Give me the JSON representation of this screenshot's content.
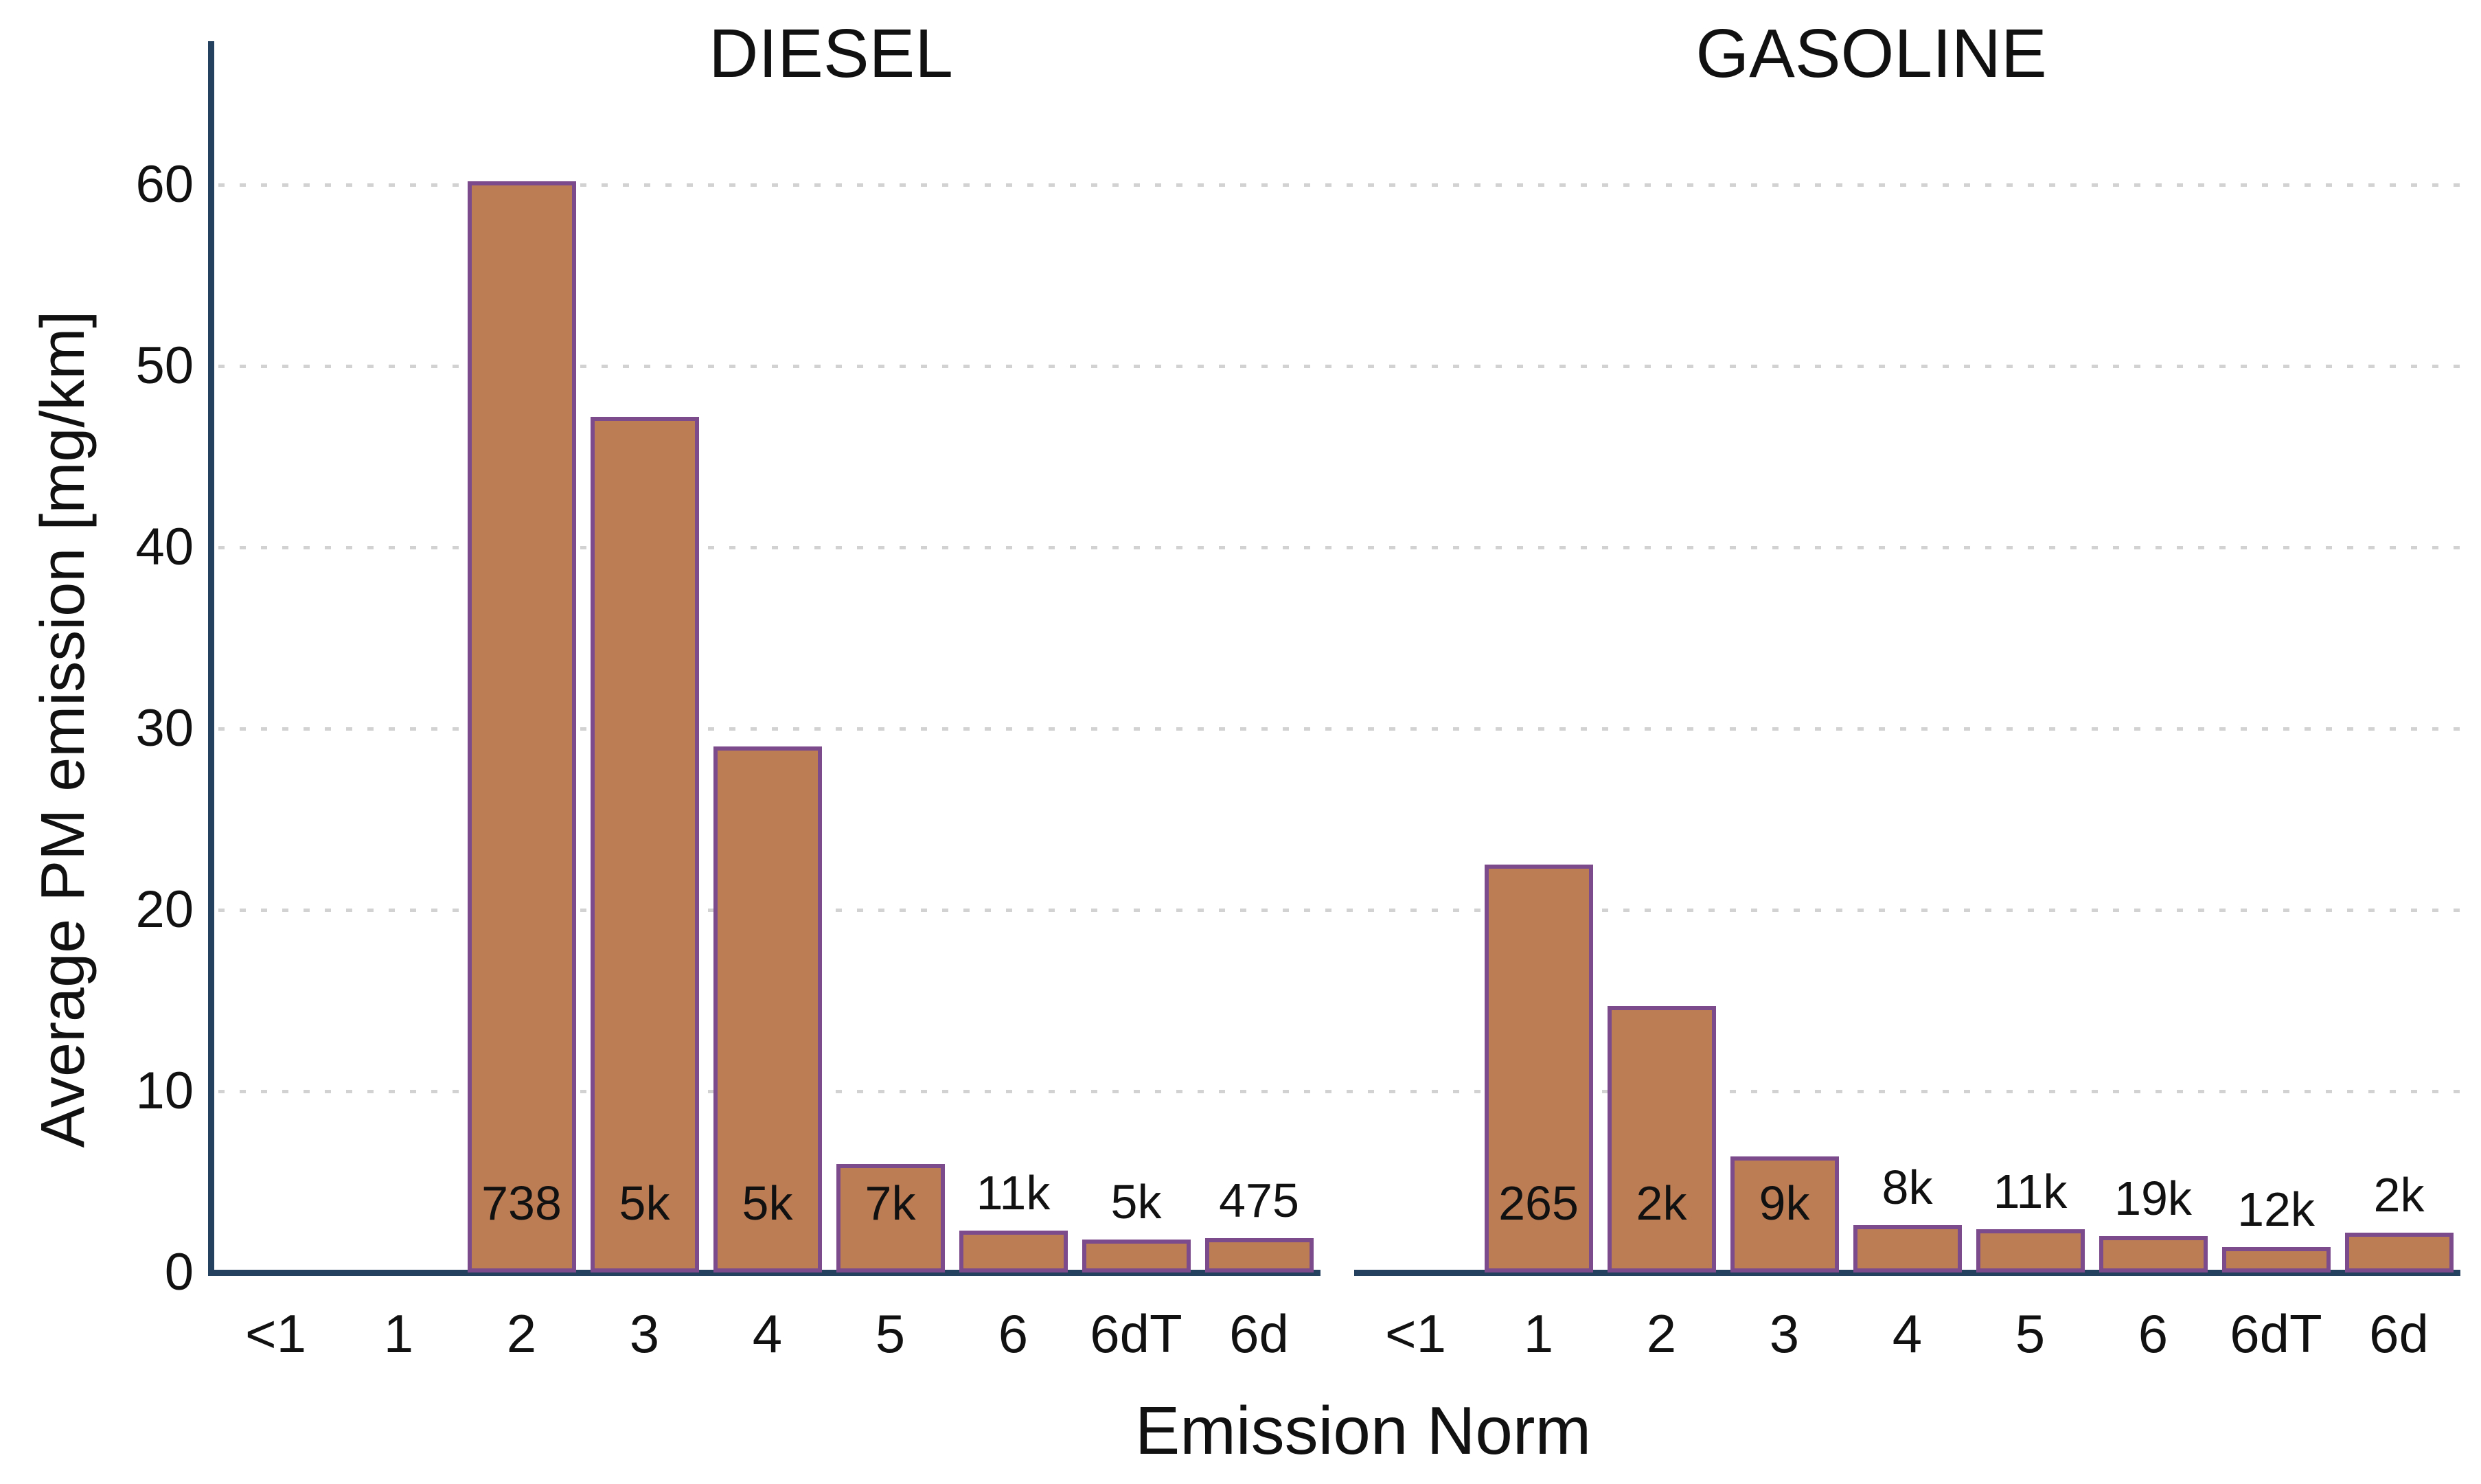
{
  "chart_data": {
    "type": "bar",
    "layout": "two side-by-side panels sharing one y-axis",
    "title": "",
    "xlabel": "Emission Norm",
    "ylabel": "Average PM emission [mg/km]",
    "ylim": [
      0,
      67
    ],
    "yticks": [
      0,
      10,
      20,
      30,
      40,
      50,
      60
    ],
    "grid": "dotted light-gray horizontal lines at each y tick",
    "categories": [
      "<1",
      "1",
      "2",
      "3",
      "4",
      "5",
      "6",
      "6dT",
      "6d"
    ],
    "panels": [
      {
        "title": "DIESEL",
        "values": [
          null,
          null,
          60.2,
          47.2,
          29.0,
          6.0,
          2.3,
          1.8,
          1.9
        ],
        "bar_count_labels": [
          null,
          null,
          "738",
          "5k",
          "5k",
          "7k",
          "11k",
          "5k",
          "475"
        ]
      },
      {
        "title": "GASOLINE",
        "values": [
          null,
          22.5,
          14.7,
          6.4,
          2.6,
          2.4,
          2.0,
          1.4,
          2.2
        ],
        "bar_count_labels": [
          null,
          "265",
          "2k",
          "9k",
          "8k",
          "11k",
          "19k",
          "12k",
          "2k"
        ]
      }
    ],
    "colors": {
      "bar_fill": "#bc7c54",
      "bar_border": "#7b4b8b",
      "axis_line": "#24425f",
      "grid": "#d2d2d2",
      "text": "#111111"
    }
  }
}
